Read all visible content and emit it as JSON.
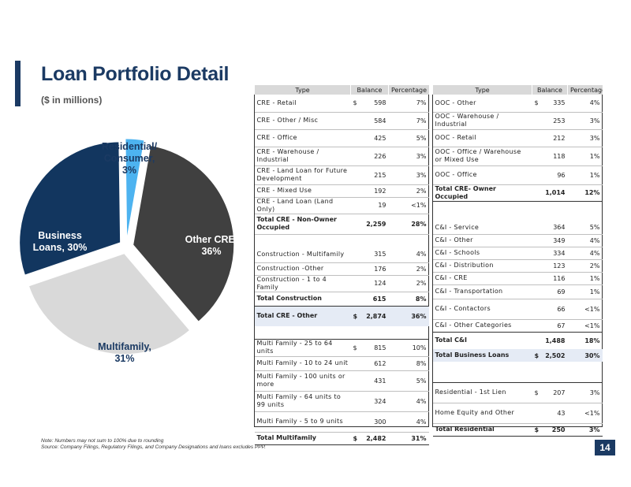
{
  "header": {
    "title": "Loan Portfolio Detail",
    "subtitle": "($ in millions)"
  },
  "chart_data": {
    "type": "pie",
    "slices": [
      {
        "label": "Other CRE, 36%",
        "value": 36,
        "color": "#404040",
        "text_color": "#ffffff"
      },
      {
        "label": "Multifamily, 31%",
        "value": 31,
        "color": "#d9d9d9",
        "text_color": "#1b3a63"
      },
      {
        "label": "Business Loans, 30%",
        "value": 30,
        "color": "#12365f",
        "text_color": "#ffffff"
      },
      {
        "label": "Residential/ Consumer, 3%",
        "value": 3,
        "color": "#4db3f0",
        "text_color": "#1b3a63"
      }
    ],
    "labels": {
      "other_cre": [
        "Other CRE,",
        "36%"
      ],
      "multifamily": [
        "Multifamily,",
        "31%"
      ],
      "business": [
        "Business",
        "Loans, 30%"
      ],
      "residential": [
        "Residential/",
        "Consumer,",
        "3%"
      ]
    }
  },
  "left_table": {
    "headers": [
      "Type",
      "Balance",
      "Percentage"
    ],
    "rows": [
      {
        "type": "CRE - Retail",
        "cur": "$",
        "balance": "598",
        "pct": "7%"
      },
      {
        "type": "CRE - Other / Misc",
        "cur": "",
        "balance": "584",
        "pct": "7%"
      },
      {
        "type": "CRE - Office",
        "cur": "",
        "balance": "425",
        "pct": "5%"
      },
      {
        "type": "CRE - Warehouse / Industrial",
        "cur": "",
        "balance": "226",
        "pct": "3%"
      },
      {
        "type": "CRE - Land Loan for Future Development",
        "cur": "",
        "balance": "215",
        "pct": "3%"
      },
      {
        "type": "CRE - Mixed Use",
        "cur": "",
        "balance": "192",
        "pct": "2%"
      },
      {
        "type": "CRE - Land Loan (Land Only)",
        "cur": "",
        "balance": "19",
        "pct": "<1%"
      },
      {
        "type": "Total CRE - Non-Owner Occupied",
        "cur": "",
        "balance": "2,259",
        "pct": "28%"
      },
      {
        "type": "",
        "cur": "",
        "balance": "",
        "pct": ""
      },
      {
        "type": "Construction - Multifamily",
        "cur": "",
        "balance": "315",
        "pct": "4%"
      },
      {
        "type": "Construction -Other",
        "cur": "",
        "balance": "176",
        "pct": "2%"
      },
      {
        "type": "Construction - 1 to 4 Family",
        "cur": "",
        "balance": "124",
        "pct": "2%"
      },
      {
        "type": "Total Construction",
        "cur": "",
        "balance": "615",
        "pct": "8%"
      },
      {
        "type": "Total CRE - Other",
        "cur": "$",
        "balance": "2,874",
        "pct": "36%"
      },
      {
        "type": "",
        "cur": "",
        "balance": "",
        "pct": ""
      },
      {
        "type": "Multi Family - 25 to 64 units",
        "cur": "$",
        "balance": "815",
        "pct": "10%"
      },
      {
        "type": "Multi Family - 10 to 24 unit",
        "cur": "",
        "balance": "612",
        "pct": "8%"
      },
      {
        "type": "Multi Family - 100 units or more",
        "cur": "",
        "balance": "431",
        "pct": "5%"
      },
      {
        "type": "Multi Family - 64 units to 99 units",
        "cur": "",
        "balance": "324",
        "pct": "4%"
      },
      {
        "type": "Multi Family - 5 to 9 units",
        "cur": "",
        "balance": "300",
        "pct": "4%"
      },
      {
        "type": "Total Multifamily",
        "cur": "$",
        "balance": "2,482",
        "pct": "31%"
      }
    ]
  },
  "right_table": {
    "headers": [
      "Type",
      "Balance",
      "Percentage"
    ],
    "rows": [
      {
        "type": "OOC - Other",
        "cur": "$",
        "balance": "335",
        "pct": "4%"
      },
      {
        "type": "OOC - Warehouse / Industrial",
        "cur": "",
        "balance": "253",
        "pct": "3%"
      },
      {
        "type": "OOC - Retail",
        "cur": "",
        "balance": "212",
        "pct": "3%"
      },
      {
        "type": "OOC - Office / Warehouse or Mixed Use",
        "cur": "",
        "balance": "118",
        "pct": "1%"
      },
      {
        "type": "OOC - Office",
        "cur": "",
        "balance": "96",
        "pct": "1%"
      },
      {
        "type": "Total CRE- Owner Occupied",
        "cur": "",
        "balance": "1,014",
        "pct": "12%"
      },
      {
        "type": "",
        "cur": "",
        "balance": "",
        "pct": ""
      },
      {
        "type": "C&I - Service",
        "cur": "",
        "balance": "364",
        "pct": "5%"
      },
      {
        "type": "C&I - Other",
        "cur": "",
        "balance": "349",
        "pct": "4%"
      },
      {
        "type": "C&I - Schools",
        "cur": "",
        "balance": "334",
        "pct": "4%"
      },
      {
        "type": "C&I - Distribution",
        "cur": "",
        "balance": "123",
        "pct": "2%"
      },
      {
        "type": "C&I - CRE",
        "cur": "",
        "balance": "116",
        "pct": "1%"
      },
      {
        "type": "C&I - Transportation",
        "cur": "",
        "balance": "69",
        "pct": "1%"
      },
      {
        "type": "C&I - Contactors",
        "cur": "",
        "balance": "66",
        "pct": "<1%"
      },
      {
        "type": "C&I - Other Categories",
        "cur": "",
        "balance": "67",
        "pct": "<1%"
      },
      {
        "type": "Total C&I",
        "cur": "",
        "balance": "1,488",
        "pct": "18%"
      },
      {
        "type": "Total Business Loans",
        "cur": "$",
        "balance": "2,502",
        "pct": "30%"
      },
      {
        "type": "",
        "cur": "",
        "balance": "",
        "pct": ""
      },
      {
        "type": "Residential - 1st Lien",
        "cur": "$",
        "balance": "207",
        "pct": "3%"
      },
      {
        "type": "Home Equity and Other",
        "cur": "",
        "balance": "43",
        "pct": "<1%"
      },
      {
        "type": "Total Residential",
        "cur": "$",
        "balance": "250",
        "pct": "3%"
      }
    ]
  },
  "footnotes": {
    "note": "Note: Numbers may not sum to 100% due to rounding",
    "source": "Source: Company Filings, Regulatory Filings, and Company Designations and loans excludes PPP."
  },
  "page_number": "14",
  "colors": {
    "brand_navy": "#1b3a63",
    "header_grey": "#d9d9d9",
    "highlight_blue": "#e5ebf5"
  }
}
